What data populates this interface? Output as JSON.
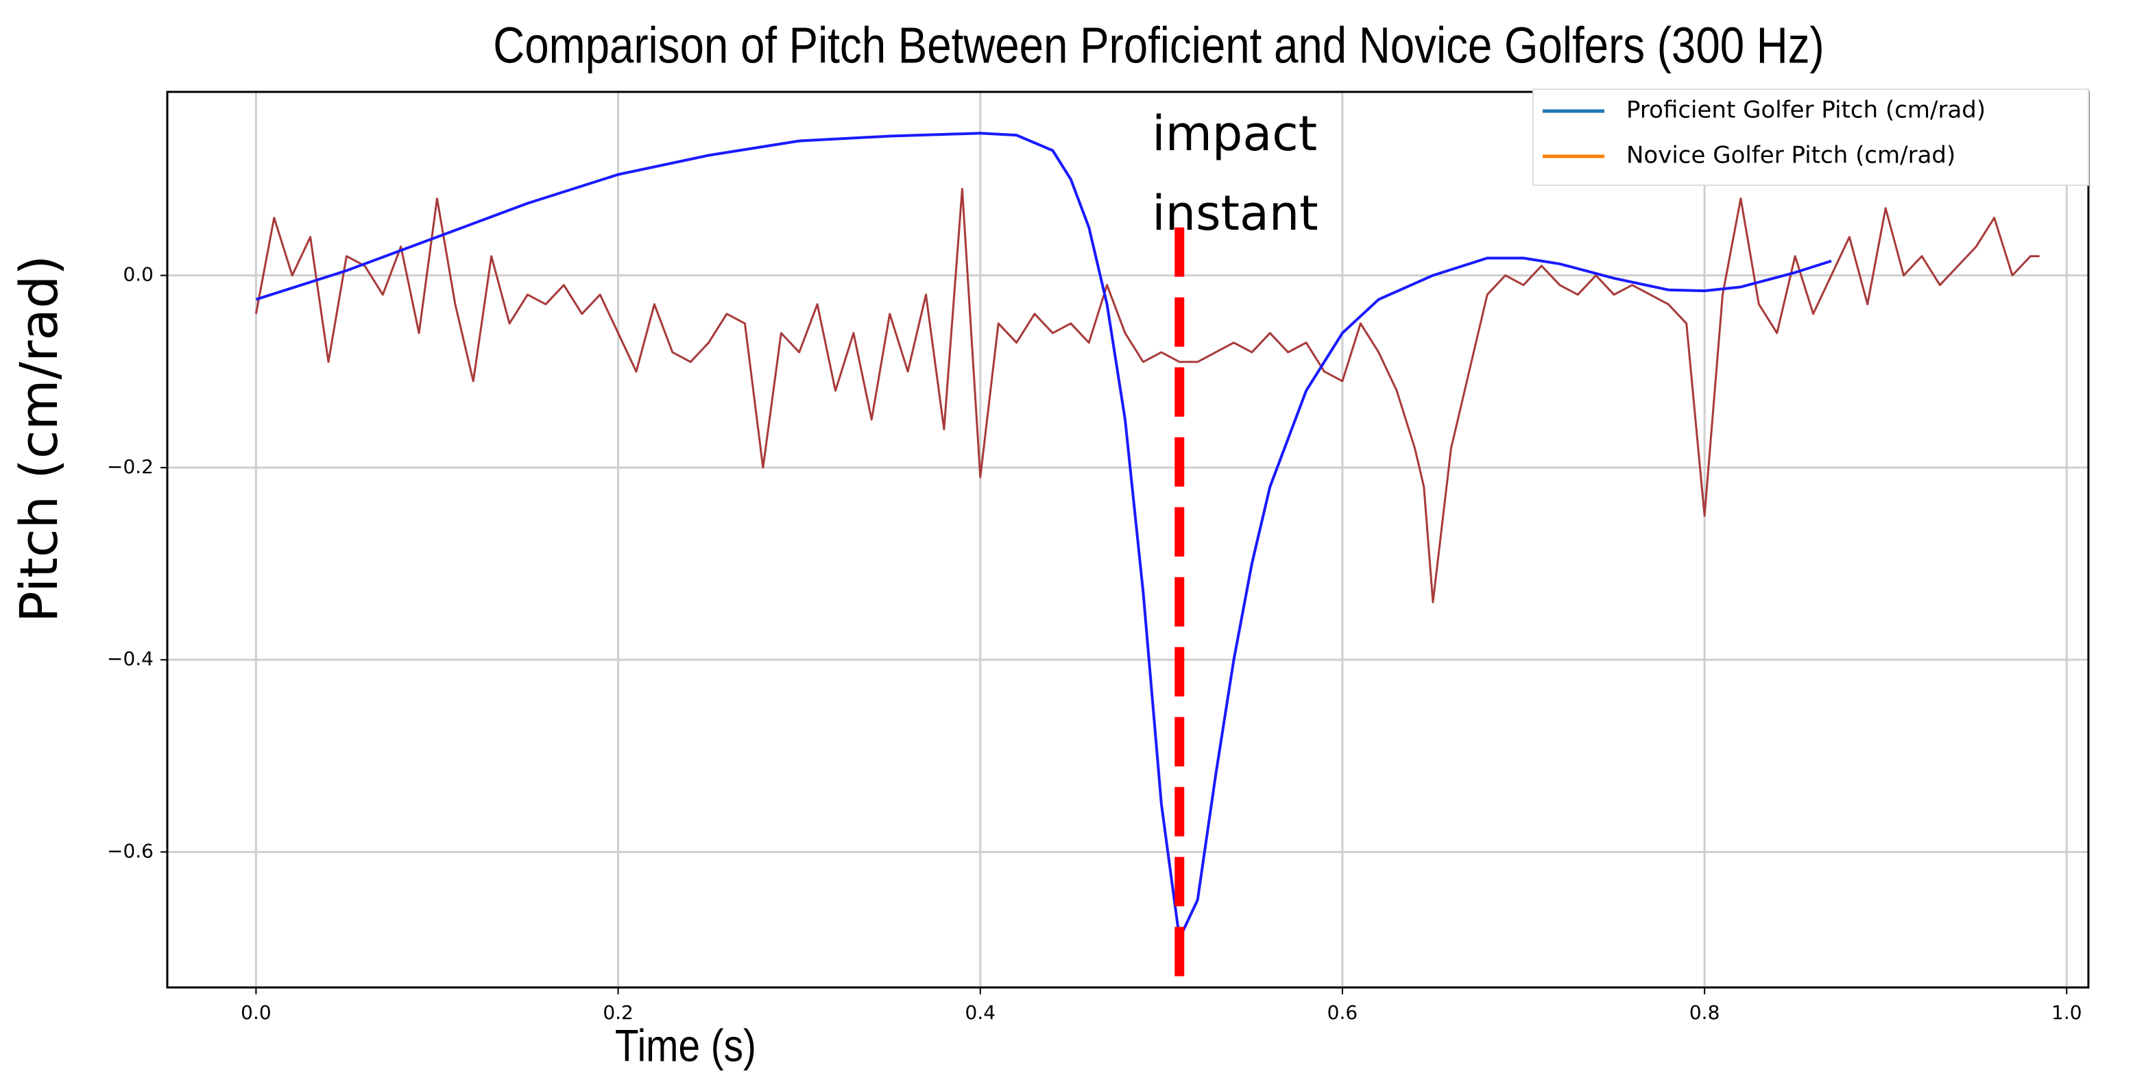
{
  "chart_data": {
    "type": "line",
    "title": "Comparison of Pitch Between Proficient and Novice Golfers (300 Hz)",
    "x_label": "Time (s)",
    "y_label": "Pitch (cm/rad)",
    "xlim": [
      -0.049,
      1.012
    ],
    "ylim": [
      -0.741,
      0.191
    ],
    "xticks": [
      {
        "value": 0,
        "label": "0.0"
      },
      0.2,
      0.4,
      0.6,
      0.8,
      {
        "value": 1,
        "label": "1.0"
      }
    ],
    "yticks": [
      {
        "value": -0.6,
        "label": "−0.6"
      },
      {
        "value": -0.4,
        "label": "−0.4"
      },
      {
        "value": -0.2,
        "label": "−0.2"
      },
      {
        "value": 0,
        "label": "0.0"
      }
    ],
    "grid": true,
    "legend": "upper right",
    "series": [
      {
        "name": "Proficient Golfer Pitch (cm/rad)",
        "color": "#1a1aff",
        "legend_color": "#1f77b4",
        "x": [
          0,
          0.05,
          0.1,
          0.15,
          0.2,
          0.25,
          0.3,
          0.35,
          0.4,
          0.42,
          0.44,
          0.45,
          0.46,
          0.47,
          0.48,
          0.49,
          0.5,
          0.51,
          0.52,
          0.53,
          0.54,
          0.55,
          0.56,
          0.58,
          0.6,
          0.62,
          0.65,
          0.68,
          0.7,
          0.72,
          0.75,
          0.78,
          0.8,
          0.82,
          0.85,
          0.87
        ],
        "values": [
          -0.025,
          0.005,
          0.04,
          0.075,
          0.105,
          0.125,
          0.14,
          0.145,
          0.148,
          0.146,
          0.13,
          0.1,
          0.05,
          -0.03,
          -0.15,
          -0.33,
          -0.55,
          -0.69,
          -0.65,
          -0.52,
          -0.4,
          -0.3,
          -0.22,
          -0.12,
          -0.06,
          -0.025,
          0,
          0.018,
          0.018,
          0.012,
          -0.003,
          -0.015,
          -0.016,
          -0.012,
          0.003,
          0.015
        ]
      },
      {
        "name": "Novice Golfer Pitch (cm/rad)",
        "color": "#a83a3a",
        "legend_color": "#ff7f0e",
        "x": [
          0,
          0.01,
          0.02,
          0.03,
          0.04,
          0.05,
          0.06,
          0.07,
          0.08,
          0.09,
          0.1,
          0.11,
          0.12,
          0.13,
          0.14,
          0.15,
          0.16,
          0.17,
          0.18,
          0.19,
          0.2,
          0.21,
          0.22,
          0.23,
          0.24,
          0.25,
          0.26,
          0.27,
          0.28,
          0.29,
          0.3,
          0.31,
          0.32,
          0.33,
          0.34,
          0.35,
          0.36,
          0.37,
          0.38,
          0.39,
          0.4,
          0.41,
          0.42,
          0.43,
          0.44,
          0.45,
          0.46,
          0.47,
          0.48,
          0.49,
          0.5,
          0.51,
          0.52,
          0.53,
          0.54,
          0.55,
          0.56,
          0.57,
          0.58,
          0.59,
          0.6,
          0.61,
          0.62,
          0.63,
          0.64,
          0.645,
          0.65,
          0.66,
          0.67,
          0.68,
          0.69,
          0.7,
          0.71,
          0.72,
          0.73,
          0.74,
          0.75,
          0.76,
          0.77,
          0.78,
          0.79,
          0.8,
          0.81,
          0.82,
          0.83,
          0.84,
          0.85,
          0.86,
          0.87,
          0.88,
          0.89,
          0.9,
          0.91,
          0.92,
          0.93,
          0.94,
          0.95,
          0.96,
          0.97,
          0.98,
          0.985
        ],
        "values": [
          -0.04,
          0.06,
          0,
          0.04,
          -0.09,
          0.02,
          0.01,
          -0.02,
          0.03,
          -0.06,
          0.08,
          -0.03,
          -0.11,
          0.02,
          -0.05,
          -0.02,
          -0.03,
          -0.01,
          -0.04,
          -0.02,
          -0.06,
          -0.1,
          -0.03,
          -0.08,
          -0.09,
          -0.07,
          -0.04,
          -0.05,
          -0.2,
          -0.06,
          -0.08,
          -0.03,
          -0.12,
          -0.06,
          -0.15,
          -0.04,
          -0.1,
          -0.02,
          -0.16,
          0.09,
          -0.21,
          -0.05,
          -0.07,
          -0.04,
          -0.06,
          -0.05,
          -0.07,
          -0.01,
          -0.06,
          -0.09,
          -0.08,
          -0.09,
          -0.09,
          -0.08,
          -0.07,
          -0.08,
          -0.06,
          -0.08,
          -0.07,
          -0.1,
          -0.11,
          -0.05,
          -0.08,
          -0.12,
          -0.18,
          -0.22,
          -0.34,
          -0.18,
          -0.1,
          -0.02,
          0,
          -0.01,
          0.01,
          -0.01,
          -0.02,
          0,
          -0.02,
          -0.01,
          -0.02,
          -0.03,
          -0.05,
          -0.25,
          -0.02,
          0.08,
          -0.03,
          -0.06,
          0.02,
          -0.04,
          0,
          0.04,
          -0.03,
          0.07,
          0,
          0.02,
          -0.01,
          0.01,
          0.03,
          0.06,
          0,
          0.02,
          0.02
        ]
      }
    ],
    "annotation": {
      "text": [
        "impact",
        "instant"
      ],
      "x": 0.51,
      "y": [
        0.05,
        -0.73
      ],
      "color": "#ff0000"
    }
  }
}
